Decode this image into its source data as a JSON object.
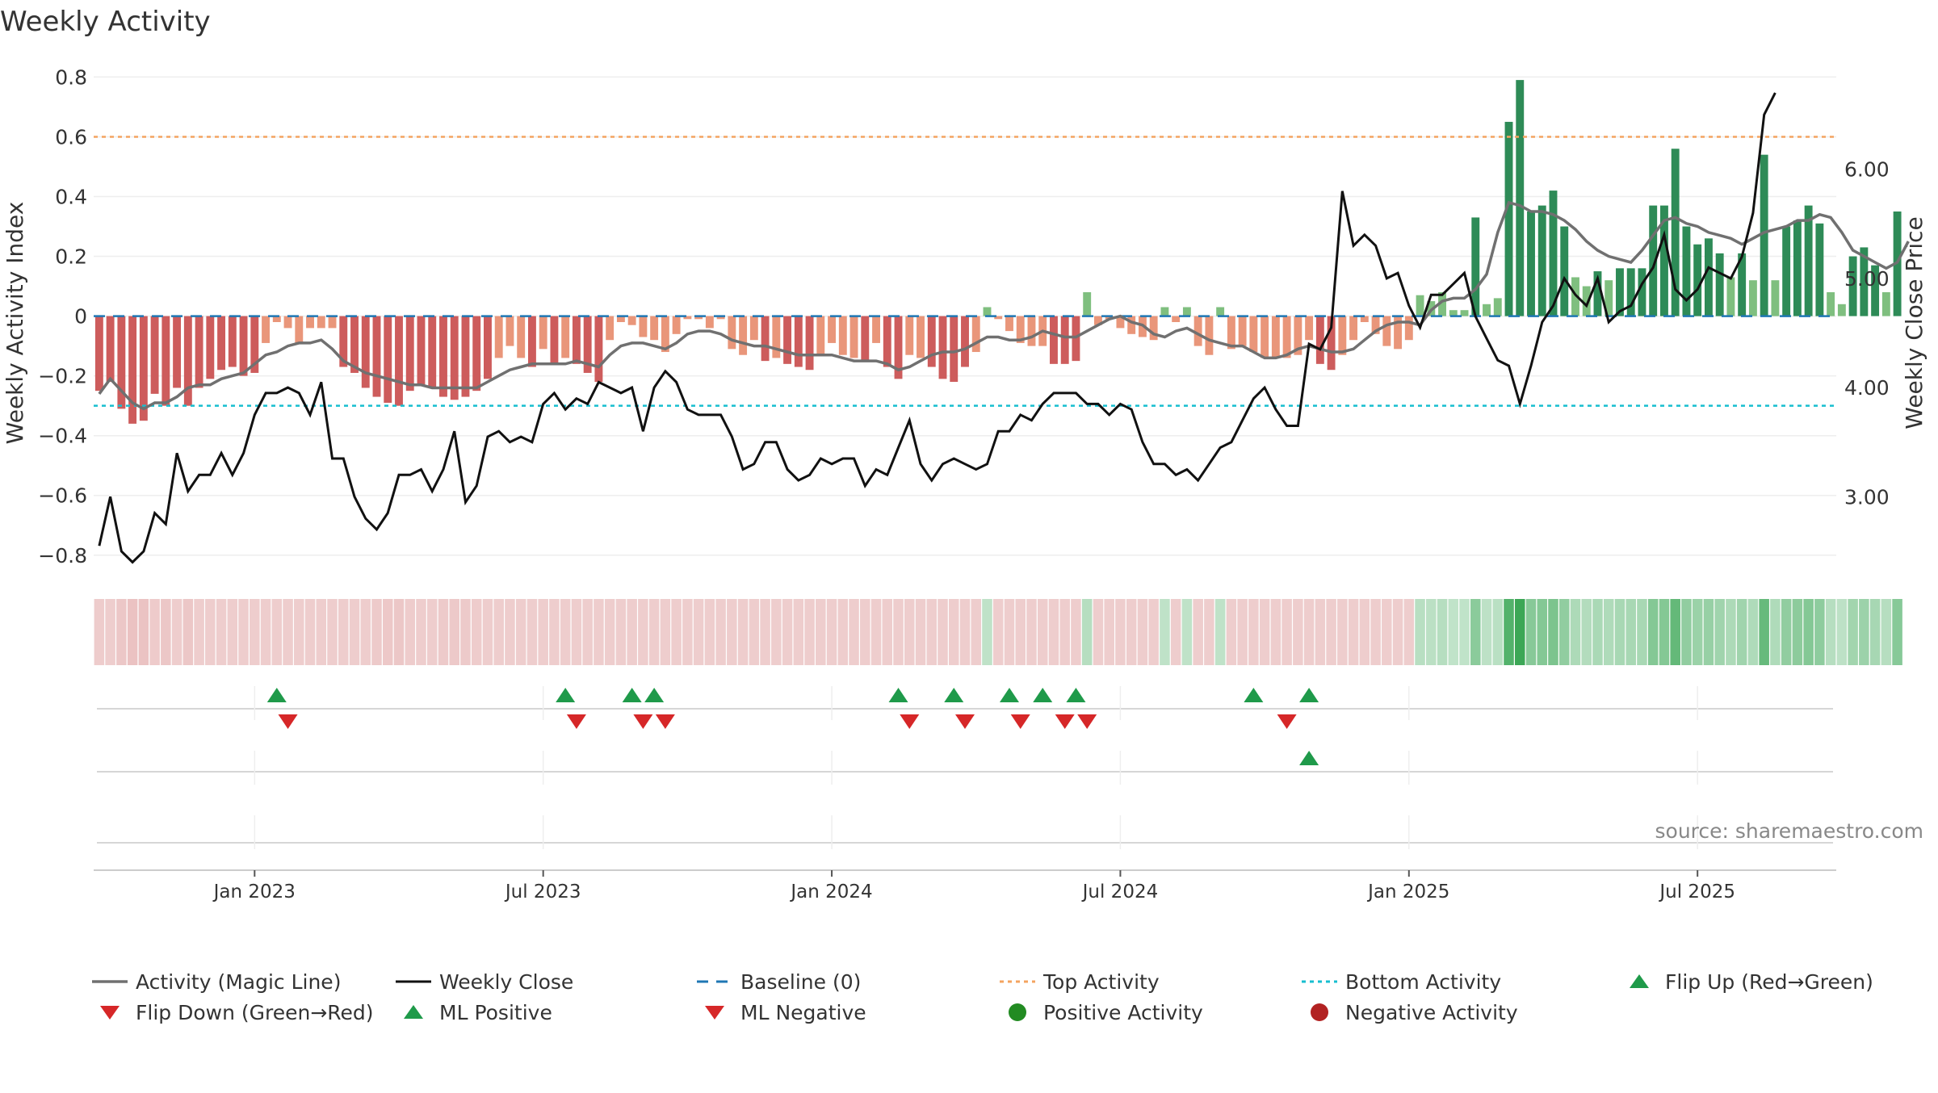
{
  "chart_data": {
    "type": "bar",
    "title": "Weekly Activity",
    "ylabel": "Weekly Activity Index",
    "y2label": "Weekly Close Price",
    "ylim": [
      -0.86,
      0.82
    ],
    "y2lim": [
      2.3,
      6.9
    ],
    "y_ticks": [
      {
        "v": 0.8,
        "label": "0.8"
      },
      {
        "v": 0.6,
        "label": "0.6"
      },
      {
        "v": 0.4,
        "label": "0.4"
      },
      {
        "v": 0.2,
        "label": "0.2"
      },
      {
        "v": 0,
        "label": "0"
      },
      {
        "v": -0.2,
        "label": "−0.2"
      },
      {
        "v": -0.4,
        "label": "−0.4"
      },
      {
        "v": -0.6,
        "label": "−0.6"
      },
      {
        "v": -0.8,
        "label": "−0.8"
      }
    ],
    "y2_ticks": [
      {
        "v": 6.0,
        "label": "6.00"
      },
      {
        "v": 5.0,
        "label": "5.00"
      },
      {
        "v": 4.0,
        "label": "4.00"
      },
      {
        "v": 3.0,
        "label": "3.00"
      }
    ],
    "x_ticks": [
      {
        "week": 14.5,
        "label": "Jan 2023"
      },
      {
        "week": 40.5,
        "label": "Jul 2023"
      },
      {
        "week": 66.5,
        "label": "Jan 2024"
      },
      {
        "week": 92.5,
        "label": "Jul 2024"
      },
      {
        "week": 118.5,
        "label": "Jan 2025"
      },
      {
        "week": 144.5,
        "label": "Jul 2025"
      }
    ],
    "x_weeks": 157,
    "top_activity": 0.6,
    "bottom_activity": -0.3,
    "baseline": 0,
    "activity": [
      -0.25,
      -0.22,
      -0.31,
      -0.36,
      -0.35,
      -0.26,
      -0.3,
      -0.24,
      -0.3,
      -0.24,
      -0.21,
      -0.18,
      -0.17,
      -0.2,
      -0.19,
      -0.09,
      -0.02,
      -0.04,
      -0.09,
      -0.04,
      -0.04,
      -0.04,
      -0.17,
      -0.19,
      -0.24,
      -0.27,
      -0.29,
      -0.3,
      -0.25,
      -0.23,
      -0.24,
      -0.27,
      -0.28,
      -0.27,
      -0.25,
      -0.21,
      -0.14,
      -0.1,
      -0.14,
      -0.17,
      -0.11,
      -0.16,
      -0.14,
      -0.16,
      -0.19,
      -0.22,
      -0.08,
      -0.02,
      -0.03,
      -0.07,
      -0.08,
      -0.12,
      -0.06,
      -0.01,
      -0.01,
      -0.04,
      -0.01,
      -0.11,
      -0.13,
      -0.08,
      -0.15,
      -0.14,
      -0.16,
      -0.17,
      -0.18,
      -0.13,
      -0.09,
      -0.13,
      -0.14,
      -0.15,
      -0.09,
      -0.17,
      -0.21,
      -0.13,
      -0.14,
      -0.17,
      -0.21,
      -0.22,
      -0.17,
      -0.12,
      0.03,
      -0.01,
      -0.05,
      -0.09,
      -0.1,
      -0.1,
      -0.16,
      -0.16,
      -0.15,
      0.08,
      -0.03,
      -0.01,
      -0.04,
      -0.06,
      -0.07,
      -0.08,
      0.03,
      -0.02,
      0.03,
      -0.1,
      -0.13,
      0.03,
      -0.11,
      -0.1,
      -0.12,
      -0.14,
      -0.14,
      -0.14,
      -0.13,
      -0.08,
      -0.16,
      -0.18,
      -0.13,
      -0.08,
      -0.02,
      -0.06,
      -0.1,
      -0.11,
      -0.08,
      0.07,
      0.05,
      0.08,
      0.02,
      0.02,
      0.33,
      0.04,
      0.06,
      0.65,
      0.79,
      0.35,
      0.37,
      0.42,
      0.3,
      0.13,
      0.1,
      0.15,
      0.12,
      0.16,
      0.16,
      0.16,
      0.37,
      0.37,
      0.56,
      0.3,
      0.24,
      0.26,
      0.21,
      0.13,
      0.21,
      0.12,
      0.54,
      0.12,
      0.3,
      0.32,
      0.37,
      0.31,
      0.08,
      0.04,
      0.2,
      0.23,
      0.17,
      0.08,
      0.35
    ],
    "magic_line": [
      -0.26,
      -0.21,
      -0.25,
      -0.29,
      -0.31,
      -0.29,
      -0.29,
      -0.27,
      -0.24,
      -0.23,
      -0.23,
      -0.21,
      -0.2,
      -0.19,
      -0.16,
      -0.13,
      -0.12,
      -0.1,
      -0.09,
      -0.09,
      -0.08,
      -0.11,
      -0.15,
      -0.17,
      -0.19,
      -0.2,
      -0.21,
      -0.22,
      -0.23,
      -0.23,
      -0.24,
      -0.24,
      -0.24,
      -0.24,
      -0.24,
      -0.22,
      -0.2,
      -0.18,
      -0.17,
      -0.16,
      -0.16,
      -0.16,
      -0.16,
      -0.15,
      -0.16,
      -0.17,
      -0.13,
      -0.1,
      -0.09,
      -0.09,
      -0.1,
      -0.11,
      -0.09,
      -0.06,
      -0.05,
      -0.05,
      -0.06,
      -0.08,
      -0.09,
      -0.1,
      -0.1,
      -0.11,
      -0.12,
      -0.13,
      -0.13,
      -0.13,
      -0.13,
      -0.14,
      -0.15,
      -0.15,
      -0.15,
      -0.16,
      -0.18,
      -0.17,
      -0.15,
      -0.13,
      -0.12,
      -0.12,
      -0.11,
      -0.09,
      -0.07,
      -0.07,
      -0.08,
      -0.08,
      -0.07,
      -0.05,
      -0.06,
      -0.07,
      -0.07,
      -0.05,
      -0.03,
      -0.01,
      0.0,
      -0.02,
      -0.03,
      -0.06,
      -0.07,
      -0.05,
      -0.04,
      -0.06,
      -0.08,
      -0.09,
      -0.1,
      -0.1,
      -0.12,
      -0.14,
      -0.14,
      -0.13,
      -0.11,
      -0.1,
      -0.11,
      -0.12,
      -0.12,
      -0.11,
      -0.08,
      -0.05,
      -0.03,
      -0.02,
      -0.02,
      -0.03,
      0.02,
      0.05,
      0.06,
      0.06,
      0.09,
      0.14,
      0.28,
      0.38,
      0.37,
      0.35,
      0.35,
      0.34,
      0.32,
      0.29,
      0.25,
      0.22,
      0.2,
      0.19,
      0.18,
      0.22,
      0.27,
      0.32,
      0.33,
      0.31,
      0.3,
      0.28,
      0.27,
      0.26,
      0.24,
      0.26,
      0.28,
      0.29,
      0.3,
      0.32,
      0.32,
      0.34,
      0.33,
      0.28,
      0.22,
      0.2,
      0.18,
      0.16,
      0.18,
      0.25
    ],
    "weekly_close": [
      2.55,
      3.0,
      2.5,
      2.4,
      2.5,
      2.85,
      2.75,
      3.4,
      3.05,
      3.2,
      3.2,
      3.4,
      3.2,
      3.4,
      3.75,
      3.95,
      3.95,
      4.0,
      3.95,
      3.75,
      4.05,
      3.35,
      3.35,
      3.0,
      2.8,
      2.7,
      2.85,
      3.2,
      3.2,
      3.25,
      3.05,
      3.25,
      3.6,
      2.95,
      3.1,
      3.55,
      3.6,
      3.5,
      3.55,
      3.5,
      3.85,
      3.95,
      3.8,
      3.9,
      3.85,
      4.05,
      4.0,
      3.95,
      4.0,
      3.6,
      4.0,
      4.15,
      4.05,
      3.8,
      3.75,
      3.75,
      3.75,
      3.55,
      3.25,
      3.3,
      3.5,
      3.5,
      3.25,
      3.15,
      3.2,
      3.35,
      3.3,
      3.35,
      3.35,
      3.1,
      3.25,
      3.2,
      3.45,
      3.7,
      3.3,
      3.15,
      3.3,
      3.35,
      3.3,
      3.25,
      3.3,
      3.6,
      3.6,
      3.75,
      3.7,
      3.85,
      3.95,
      3.95,
      3.95,
      3.85,
      3.85,
      3.75,
      3.85,
      3.8,
      3.5,
      3.3,
      3.3,
      3.2,
      3.25,
      3.15,
      3.3,
      3.45,
      3.5,
      3.7,
      3.9,
      4.0,
      3.8,
      3.65,
      3.65,
      4.4,
      4.35,
      4.55,
      5.8,
      5.3,
      5.4,
      5.3,
      5.0,
      5.05,
      4.75,
      4.55,
      4.85,
      4.85,
      4.95,
      5.05,
      4.65,
      4.45,
      4.25,
      4.2,
      3.85,
      4.2,
      4.6,
      4.75,
      5.0,
      4.85,
      4.75,
      5.0,
      4.6,
      4.7,
      4.75,
      4.95,
      5.1,
      5.4,
      4.9,
      4.8,
      4.9,
      5.1,
      5.05,
      5.0,
      5.2,
      5.6,
      6.5,
      6.7
    ],
    "flip_up_weeks": [
      16,
      42,
      48,
      50,
      72,
      77,
      82,
      85,
      88,
      104,
      109
    ],
    "flip_down_weeks": [
      17,
      43,
      49,
      51,
      73,
      78,
      83,
      87,
      89,
      107
    ],
    "ml_positive_weeks": [
      109
    ],
    "ml_negative_weeks": [],
    "source_text": "source: sharemaestro.com",
    "legend": [
      {
        "key": "magic",
        "label": "Activity (Magic Line)"
      },
      {
        "key": "close",
        "label": "Weekly Close"
      },
      {
        "key": "baseline",
        "label": "Baseline (0)"
      },
      {
        "key": "top",
        "label": "Top Activity"
      },
      {
        "key": "bottom",
        "label": "Bottom Activity"
      },
      {
        "key": "flipup",
        "label": "Flip Up (Red→Green)"
      },
      {
        "key": "flipdown",
        "label": "Flip Down (Green→Red)"
      },
      {
        "key": "mlpos",
        "label": "ML Positive"
      },
      {
        "key": "mlneg",
        "label": "ML Negative"
      },
      {
        "key": "posact",
        "label": "Positive Activity"
      },
      {
        "key": "negact",
        "label": "Negative Activity"
      }
    ],
    "colors": {
      "pos_dark": "#2e8b57",
      "pos_light": "#7fbf7f",
      "neg_dark": "#cd5c5c",
      "neg_light": "#e9967a",
      "magic_line": "#707070",
      "close_line": "#111111",
      "baseline": "#1f77b4",
      "top_line": "#f4a460",
      "bottom_line": "#17becf",
      "flip_up": "#1f9a4a",
      "flip_down": "#d62728",
      "pos_dot": "#228b22",
      "neg_dot": "#b22222"
    }
  }
}
